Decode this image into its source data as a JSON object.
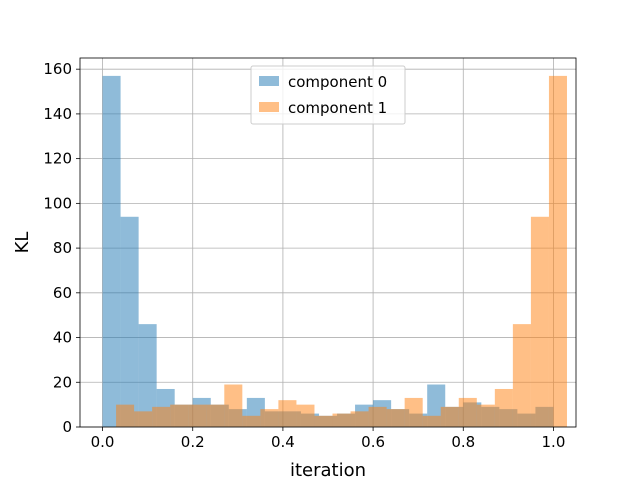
{
  "chart_data": {
    "type": "bar",
    "subtype": "histogram",
    "xlabel": "iteration",
    "ylabel": "KL",
    "xlim": [
      -0.05,
      1.05
    ],
    "ylim": [
      0,
      165
    ],
    "xticks": [
      0.0,
      0.2,
      0.4,
      0.6,
      0.8,
      1.0
    ],
    "xtick_labels": [
      "0.0",
      "0.2",
      "0.4",
      "0.6",
      "0.8",
      "1.0"
    ],
    "yticks": [
      0,
      20,
      40,
      60,
      80,
      100,
      120,
      140,
      160
    ],
    "ytick_labels": [
      "0",
      "20",
      "40",
      "60",
      "80",
      "100",
      "120",
      "140",
      "160"
    ],
    "grid": true,
    "legend_position": "top-center",
    "bin_edges": [
      0.0,
      0.04,
      0.08,
      0.12,
      0.16,
      0.2,
      0.24,
      0.28,
      0.32,
      0.36,
      0.4,
      0.44,
      0.48,
      0.52,
      0.56,
      0.6,
      0.64,
      0.68,
      0.72,
      0.76,
      0.8,
      0.84,
      0.88,
      0.92,
      0.96,
      1.0
    ],
    "series": [
      {
        "name": "component 0",
        "color": "#1f77b4",
        "opacity": 0.5,
        "x_offset": 0.0,
        "values": [
          157,
          94,
          46,
          17,
          10,
          13,
          10,
          8,
          13,
          7,
          7,
          6,
          5,
          6,
          10,
          12,
          8,
          6,
          19,
          9,
          11,
          9,
          8,
          6,
          9
        ]
      },
      {
        "name": "component 1",
        "color": "#ff7f0e",
        "opacity": 0.5,
        "x_offset": 0.03,
        "values": [
          10,
          7,
          9,
          10,
          10,
          10,
          19,
          5,
          8,
          12,
          10,
          5,
          6,
          7,
          9,
          8,
          13,
          5,
          9,
          13,
          10,
          17,
          46,
          94,
          157
        ]
      }
    ]
  }
}
